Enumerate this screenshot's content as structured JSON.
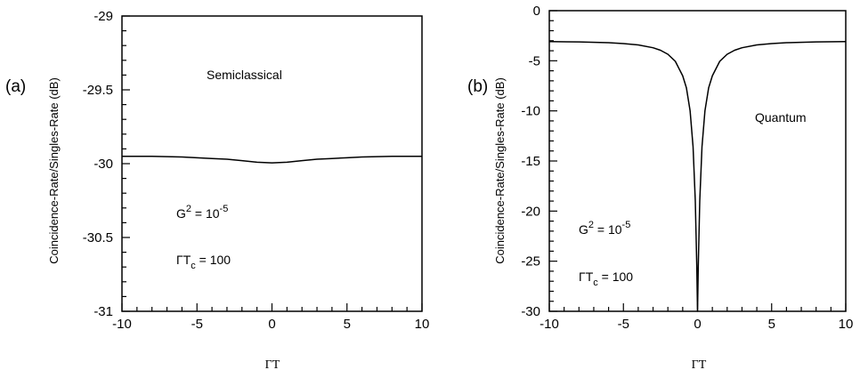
{
  "chart_data": [
    {
      "type": "line",
      "panel_label": "(a)",
      "title": "Semiclassical",
      "xlabel": "ΓT",
      "ylabel": "Coincidence-Rate/Singles-Rate  (dB)",
      "xlim": [
        -10,
        10
      ],
      "ylim": [
        -31,
        -29
      ],
      "x_ticks": [
        -10,
        -5,
        0,
        5,
        10
      ],
      "x_tick_labels": [
        "-10",
        "-5",
        "0",
        "5",
        "10"
      ],
      "y_ticks": [
        -29,
        -29.5,
        -30,
        -30.5,
        -31
      ],
      "y_tick_labels": [
        "-29",
        "-29.5",
        "-30",
        "-30.5",
        "-31"
      ],
      "annotations": {
        "g_base": "G",
        "g_exp": "2",
        "g_eq": " = 10",
        "g_val_exp": "-5",
        "gamma_base": "ΓT",
        "gamma_sub": "c",
        "gamma_eq": " = 100"
      },
      "series": [
        {
          "x": [
            -10,
            -8,
            -6,
            -5,
            -4,
            -3,
            -2,
            -1,
            0,
            1,
            2,
            3,
            4,
            5,
            6,
            8,
            10
          ],
          "y": [
            -29.95,
            -29.95,
            -29.955,
            -29.96,
            -29.965,
            -29.97,
            -29.98,
            -29.99,
            -29.995,
            -29.99,
            -29.98,
            -29.97,
            -29.965,
            -29.96,
            -29.955,
            -29.95,
            -29.95
          ]
        }
      ]
    },
    {
      "type": "line",
      "panel_label": "(b)",
      "title": "Quantum",
      "xlabel": "ΓT",
      "ylabel": "Coincidence-Rate/Singles-Rate  (dB)",
      "xlim": [
        -10,
        10
      ],
      "ylim": [
        -30,
        0
      ],
      "x_ticks": [
        -10,
        -5,
        0,
        5,
        10
      ],
      "x_tick_labels": [
        "-10",
        "-5",
        "0",
        "5",
        "10"
      ],
      "y_ticks": [
        0,
        -5,
        -10,
        -15,
        -20,
        -25,
        -30
      ],
      "y_tick_labels": [
        "0",
        "-5",
        "-10",
        "-15",
        "-20",
        "-25",
        "-30"
      ],
      "annotations": {
        "g_base": "G",
        "g_exp": "2",
        "g_eq": " = 10",
        "g_val_exp": "-5",
        "gamma_base": "ΓT",
        "gamma_sub": "c",
        "gamma_eq": " = 100"
      },
      "series": [
        {
          "x": [
            -10,
            -8,
            -6,
            -5,
            -4,
            -3,
            -2.5,
            -2,
            -1.5,
            -1,
            -0.75,
            -0.5,
            -0.3,
            -0.15,
            -0.05,
            0,
            0.05,
            0.15,
            0.3,
            0.5,
            0.75,
            1,
            1.5,
            2,
            2.5,
            3,
            4,
            5,
            6,
            8,
            10
          ],
          "y": [
            -3.08,
            -3.12,
            -3.2,
            -3.28,
            -3.42,
            -3.7,
            -3.95,
            -4.35,
            -5.05,
            -6.5,
            -7.7,
            -10.0,
            -13.6,
            -19.0,
            -25.5,
            -30,
            -25.5,
            -19.0,
            -13.6,
            -10.0,
            -7.7,
            -6.5,
            -5.05,
            -4.35,
            -3.95,
            -3.7,
            -3.42,
            -3.28,
            -3.2,
            -3.12,
            -3.08
          ]
        }
      ]
    }
  ]
}
